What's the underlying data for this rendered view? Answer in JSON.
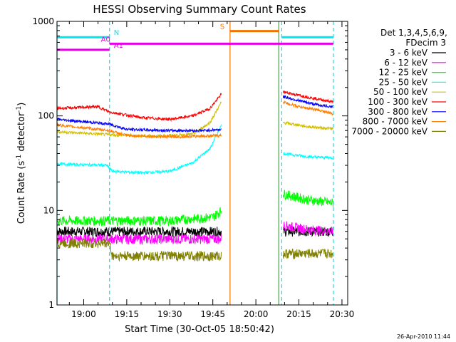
{
  "chart_data": {
    "type": "line",
    "title": "HESSI Observing Summary Count Rates",
    "xlabel": "Start Time (30-Oct-05 18:50:42)",
    "ylabel_main": "Count Rate (s",
    "ylabel_sup1": "-1",
    "ylabel_mid": " detector",
    "ylabel_sup2": "-1",
    "ylabel_end": ")",
    "y_scale": "log",
    "ylim": [
      1,
      1000
    ],
    "xlim": [
      "18:50:42",
      "20:32:00"
    ],
    "x_ticks": [
      "19:00",
      "19:15",
      "19:30",
      "19:45",
      "20:00",
      "20:15",
      "20:30"
    ],
    "y_ticks": [
      "1",
      "10",
      "100",
      "1000"
    ],
    "timestamp": "26-Apr-2010 11:44",
    "legend": {
      "header_line1": "Det 1,3,4,5,6,9,",
      "header_line2": "FDecim 3",
      "placement": "right"
    },
    "flags": [
      {
        "label": "N",
        "color": "#00e5ee",
        "level": 680,
        "segments": [
          [
            "18:50:42",
            "19:09:00"
          ],
          [
            "20:09:00",
            "20:27:00"
          ]
        ]
      },
      {
        "label": "A0",
        "color": "#e600e6",
        "level": 580,
        "segments": [
          [
            "19:09:00",
            "20:27:00"
          ]
        ]
      },
      {
        "label": "A1",
        "color": "#e600e6",
        "level": 500,
        "segments": [
          [
            "18:50:42",
            "19:09:00"
          ]
        ]
      },
      {
        "label": "S",
        "color": "#ee7600",
        "level": 790,
        "segments": [
          [
            "19:51:00",
            "20:08:00"
          ]
        ]
      }
    ],
    "vertical_lines": [
      {
        "time": "18:50:42",
        "color": "#00e5ee",
        "dashed": false
      },
      {
        "time": "19:09:00",
        "color": "#00e5ee",
        "dashed": true
      },
      {
        "time": "19:51:00",
        "color": "#ee7600",
        "dashed": false
      },
      {
        "time": "20:08:00",
        "color": "#00cc00",
        "dashed": false
      },
      {
        "time": "20:09:00",
        "color": "#00e5ee",
        "dashed": true
      },
      {
        "time": "20:27:00",
        "color": "#00e5ee",
        "dashed": true
      }
    ],
    "series": [
      {
        "name": "3 - 6 keV",
        "color": "#000000",
        "segment1": [
          [
            "18:50:42",
            6
          ],
          [
            "19:09:00",
            6
          ],
          [
            "19:48:00",
            6
          ]
        ],
        "segment2": [
          [
            "20:09:30",
            6
          ],
          [
            "20:27:00",
            6
          ]
        ]
      },
      {
        "name": "6 - 12 keV",
        "color": "#ff00ff",
        "segment1": [
          [
            "18:50:42",
            5
          ],
          [
            "19:15:00",
            5
          ],
          [
            "19:35:00",
            5
          ],
          [
            "19:48:00",
            5
          ]
        ],
        "segment2": [
          [
            "20:09:30",
            7
          ],
          [
            "20:18:00",
            6.3
          ],
          [
            "20:27:00",
            6
          ]
        ]
      },
      {
        "name": "12 - 25 keV",
        "color": "#00ff00",
        "segment1": [
          [
            "18:50:42",
            7.8
          ],
          [
            "19:10:00",
            7.8
          ],
          [
            "19:30:00",
            7.8
          ],
          [
            "19:45:00",
            8.5
          ],
          [
            "19:48:00",
            10
          ]
        ],
        "segment2": [
          [
            "20:09:30",
            15
          ],
          [
            "20:18:00",
            13
          ],
          [
            "20:27:00",
            12
          ]
        ]
      },
      {
        "name": "25 - 50 keV",
        "color": "#00ffff",
        "segment1": [
          [
            "18:50:42",
            31
          ],
          [
            "19:08:00",
            30
          ],
          [
            "19:10:00",
            26
          ],
          [
            "19:20:00",
            25
          ],
          [
            "19:30:00",
            26
          ],
          [
            "19:38:00",
            32
          ],
          [
            "19:44:00",
            45
          ],
          [
            "19:48:00",
            80
          ]
        ],
        "segment2": [
          [
            "20:09:30",
            40
          ],
          [
            "20:18:00",
            37
          ],
          [
            "20:27:00",
            36
          ]
        ]
      },
      {
        "name": "50 - 100 keV",
        "color": "#d2c000",
        "segment1": [
          [
            "18:50:42",
            68
          ],
          [
            "19:10:00",
            63
          ],
          [
            "19:25:00",
            61
          ],
          [
            "19:38:00",
            64
          ],
          [
            "19:44:00",
            85
          ],
          [
            "19:48:00",
            140
          ]
        ],
        "segment2": [
          [
            "20:09:30",
            85
          ],
          [
            "20:18:00",
            77
          ],
          [
            "20:27:00",
            73
          ]
        ]
      },
      {
        "name": "100 - 300 keV",
        "color": "#ff0000",
        "segment1": [
          [
            "18:50:42",
            120
          ],
          [
            "19:05:00",
            125
          ],
          [
            "19:09:00",
            110
          ],
          [
            "19:20:00",
            96
          ],
          [
            "19:30:00",
            92
          ],
          [
            "19:38:00",
            100
          ],
          [
            "19:44:00",
            120
          ],
          [
            "19:48:00",
            170
          ]
        ],
        "segment2": [
          [
            "20:09:30",
            180
          ],
          [
            "20:15:00",
            165
          ],
          [
            "20:22:00",
            150
          ],
          [
            "20:27:00",
            140
          ]
        ]
      },
      {
        "name": "300 - 800 keV",
        "color": "#0000ff",
        "segment1": [
          [
            "18:50:42",
            92
          ],
          [
            "19:09:00",
            82
          ],
          [
            "19:15:00",
            72
          ],
          [
            "19:30:00",
            70
          ],
          [
            "19:42:00",
            70
          ],
          [
            "19:48:00",
            72
          ]
        ],
        "segment2": [
          [
            "20:09:30",
            160
          ],
          [
            "20:15:00",
            145
          ],
          [
            "20:22:00",
            130
          ],
          [
            "20:27:00",
            125
          ]
        ]
      },
      {
        "name": "800 - 7000 keV",
        "color": "#ff7f00",
        "segment1": [
          [
            "18:50:42",
            80
          ],
          [
            "19:09:00",
            70
          ],
          [
            "19:15:00",
            62
          ],
          [
            "19:30:00",
            60
          ],
          [
            "19:48:00",
            62
          ]
        ],
        "segment2": [
          [
            "20:09:30",
            140
          ],
          [
            "20:15:00",
            125
          ],
          [
            "20:22:00",
            115
          ],
          [
            "20:27:00",
            105
          ]
        ]
      },
      {
        "name": "7000 - 20000 keV",
        "color": "#808000",
        "segment1": [
          [
            "18:50:42",
            4.5
          ],
          [
            "19:09:00",
            4.5
          ],
          [
            "19:10:00",
            3.3
          ],
          [
            "19:30:00",
            3.3
          ],
          [
            "19:48:00",
            3.3
          ]
        ],
        "segment2": [
          [
            "20:09:30",
            3.5
          ],
          [
            "20:18:00",
            3.5
          ],
          [
            "20:27:00",
            3.5
          ]
        ]
      }
    ]
  }
}
